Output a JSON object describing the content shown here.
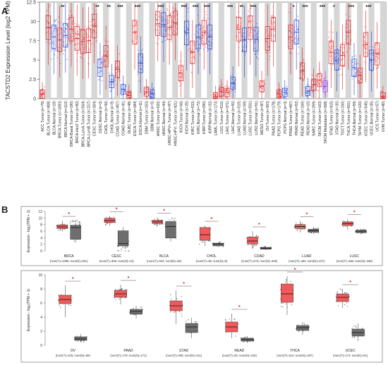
{
  "panel_a_label": "A",
  "panel_b_label": "B",
  "chart_data": [
    {
      "type": "box",
      "panel": "A",
      "ylabel": "TACSTD2 Expression Level (log2 TPM)",
      "ylim": [
        0,
        12.5
      ],
      "yticks": [
        0,
        2.5,
        5,
        7.5,
        10,
        12.5
      ],
      "colors": {
        "tumor": "#e41a1c",
        "normal": "#1f3fd6",
        "metastasis": "#9b30ff"
      },
      "categories": [
        {
          "label": "ACC.Tumor (n=79)",
          "group": "tumor",
          "median": 0.6
        },
        {
          "label": "BLCA.Tumor (n=408)",
          "group": "tumor",
          "median": 9.2
        },
        {
          "label": "BLCA.Normal (n=19)",
          "group": "normal",
          "median": 8.0
        },
        {
          "label": "BRCA.Tumor (n=1093)",
          "group": "tumor",
          "median": 7.6
        },
        {
          "label": "BRCA.Normal (n=112)",
          "group": "normal",
          "median": 8.2
        },
        {
          "label": "BRCA-Basal.Tumor (n=190)",
          "group": "tumor",
          "median": 9.0
        },
        {
          "label": "BRCA-Her2.Tumor (n=82)",
          "group": "tumor",
          "median": 7.8
        },
        {
          "label": "BRCA-LumA.Tumor (n=564)",
          "group": "tumor",
          "median": 7.4
        },
        {
          "label": "BRCA-LumB.Tumor (n=217)",
          "group": "tumor",
          "median": 7.5
        },
        {
          "label": "CESC.Tumor (n=304)",
          "group": "tumor",
          "median": 9.4
        },
        {
          "label": "CESC.Normal (n=3)",
          "group": "normal",
          "median": 4.0
        },
        {
          "label": "CHOL.Tumor (n=36)",
          "group": "tumor",
          "median": 5.5
        },
        {
          "label": "CHOL.Normal (n=9)",
          "group": "normal",
          "median": 2.2
        },
        {
          "label": "COAD.Tumor (n=457)",
          "group": "tumor",
          "median": 3.8
        },
        {
          "label": "COAD.Normal (n=41)",
          "group": "normal",
          "median": 1.2
        },
        {
          "label": "DLBC.Tumor (n=48)",
          "group": "tumor",
          "median": 0.4
        },
        {
          "label": "ESCA.Tumor (n=184)",
          "group": "tumor",
          "median": 8.6
        },
        {
          "label": "ESCA.Normal (n=11)",
          "group": "normal",
          "median": 4.6
        },
        {
          "label": "GBM.Tumor (n=153)",
          "group": "tumor",
          "median": 0.9
        },
        {
          "label": "GBM.Normal (n=5)",
          "group": "normal",
          "median": 0.6
        },
        {
          "label": "HNSC.Tumor (n=520)",
          "group": "tumor",
          "median": 9.7
        },
        {
          "label": "HNSC.Normal (n=44)",
          "group": "normal",
          "median": 9.6
        },
        {
          "label": "HNSC-HPV+.Tumor (n=97)",
          "group": "tumor",
          "median": 9.2
        },
        {
          "label": "HNSC-HPV-.Tumor (n=421)",
          "group": "tumor",
          "median": 9.8
        },
        {
          "label": "KICH.Tumor (n=66)",
          "group": "tumor",
          "median": 3.3
        },
        {
          "label": "KICH.Normal (n=25)",
          "group": "normal",
          "median": 8.5
        },
        {
          "label": "KIRC.Tumor (n=533)",
          "group": "tumor",
          "median": 6.0
        },
        {
          "label": "KIRC.Normal (n=72)",
          "group": "normal",
          "median": 8.0
        },
        {
          "label": "KIRP.Tumor (n=290)",
          "group": "tumor",
          "median": 8.6
        },
        {
          "label": "KIRP.Normal (n=32)",
          "group": "normal",
          "median": 8.0
        },
        {
          "label": "LAML.Tumor (n=173)",
          "group": "tumor",
          "median": 0.3
        },
        {
          "label": "LGG.Tumor (n=516)",
          "group": "tumor",
          "median": 0.9
        },
        {
          "label": "LIHC.Tumor (n=371)",
          "group": "tumor",
          "median": 0.8
        },
        {
          "label": "LIHC.Normal (n=50)",
          "group": "normal",
          "median": 2.0
        },
        {
          "label": "LUAD.Tumor (n=515)",
          "group": "tumor",
          "median": 9.0
        },
        {
          "label": "LUAD.Normal (n=59)",
          "group": "normal",
          "median": 7.6
        },
        {
          "label": "LUSC.Tumor (n=501)",
          "group": "tumor",
          "median": 9.2
        },
        {
          "label": "LUSC.Normal (n=51)",
          "group": "normal",
          "median": 7.7
        },
        {
          "label": "MESO.Tumor (n=87)",
          "group": "tumor",
          "median": 1.6
        },
        {
          "label": "OV.Tumor (n=303)",
          "group": "tumor",
          "median": 7.8
        },
        {
          "label": "PAAD.Tumor (n=178)",
          "group": "tumor",
          "median": 9.0
        },
        {
          "label": "PCPG.Tumor (n=179)",
          "group": "tumor",
          "median": 0.6
        },
        {
          "label": "PCPG.Normal (n=3)",
          "group": "normal",
          "median": 0.8
        },
        {
          "label": "PRAD.Tumor (n=497)",
          "group": "tumor",
          "median": 8.0
        },
        {
          "label": "PRAD.Normal (n=52)",
          "group": "normal",
          "median": 8.6
        },
        {
          "label": "READ.Tumor (n=166)",
          "group": "tumor",
          "median": 3.6
        },
        {
          "label": "READ.Normal (n=10)",
          "group": "normal",
          "median": 1.0
        },
        {
          "label": "SARC.Tumor (n=259)",
          "group": "tumor",
          "median": 1.8
        },
        {
          "label": "SKCM.Tumor (n=103)",
          "group": "tumor",
          "median": 2.4
        },
        {
          "label": "SKCM.Metastasis (n=368)",
          "group": "metastasis",
          "median": 1.6
        },
        {
          "label": "STAD.Tumor (n=415)",
          "group": "tumor",
          "median": 6.0
        },
        {
          "label": "STAD.Normal (n=35)",
          "group": "normal",
          "median": 5.0
        },
        {
          "label": "TGCT.Tumor (n=150)",
          "group": "tumor",
          "median": 5.6
        },
        {
          "label": "THCA.Tumor (n=501)",
          "group": "tumor",
          "median": 8.6
        },
        {
          "label": "THCA.Normal (n=59)",
          "group": "normal",
          "median": 4.0
        },
        {
          "label": "THYM.Tumor (n=120)",
          "group": "tumor",
          "median": 3.0
        },
        {
          "label": "UCEC.Tumor (n=545)",
          "group": "tumor",
          "median": 7.0
        },
        {
          "label": "UCEC.Normal (n=35)",
          "group": "normal",
          "median": 5.0
        },
        {
          "label": "UCS.Tumor (n=57)",
          "group": "tumor",
          "median": 5.8
        },
        {
          "label": "UVM.Tumor (n=80)",
          "group": "tumor",
          "median": 0.3
        }
      ],
      "significance": [
        {
          "between": [
            3,
            4
          ],
          "label": "**"
        },
        {
          "between": [
            9,
            10
          ],
          "label": "**"
        },
        {
          "between": [
            11,
            12
          ],
          "label": "**"
        },
        {
          "between": [
            13,
            14
          ],
          "label": "***"
        },
        {
          "between": [
            16,
            17
          ],
          "label": "***"
        },
        {
          "between": [
            20,
            21
          ],
          "label": "***"
        },
        {
          "between": [
            24,
            25
          ],
          "label": "***"
        },
        {
          "between": [
            26,
            27
          ],
          "label": "***"
        },
        {
          "between": [
            28,
            29
          ],
          "label": "***"
        },
        {
          "between": [
            32,
            33
          ],
          "label": "***"
        },
        {
          "between": [
            34,
            35
          ],
          "label": "**"
        },
        {
          "between": [
            36,
            37
          ],
          "label": "***"
        },
        {
          "between": [
            43,
            44
          ],
          "label": "*"
        },
        {
          "between": [
            45,
            46
          ],
          "label": "***"
        },
        {
          "between": [
            48,
            49
          ],
          "label": "***"
        },
        {
          "between": [
            50,
            51
          ],
          "label": "*"
        },
        {
          "between": [
            53,
            54
          ],
          "label": "***"
        },
        {
          "between": [
            56,
            57
          ],
          "label": "***"
        }
      ]
    },
    {
      "type": "box",
      "panel": "B-top",
      "ylabel": "Expression - log₂(TPM + 1)",
      "ylim": [
        0,
        12
      ],
      "yticks": [
        0,
        2,
        4,
        6,
        8,
        10,
        12
      ],
      "groups": [
        {
          "name": "BRCA",
          "n": "(num(T)=1085; num(N)=291)",
          "tumor": [
            5.9,
            6.8,
            7.3,
            7.9,
            9.2
          ],
          "normal": [
            2.5,
            3.5,
            7.1,
            7.8,
            8.6
          ]
        },
        {
          "name": "CESC",
          "n": "(num(T)=306; num(N)=13)",
          "tumor": [
            7.6,
            8.6,
            9.2,
            9.9,
            10.6
          ],
          "normal": [
            1.2,
            1.5,
            2.2,
            6.1,
            7.2
          ]
        },
        {
          "name": "BLCA",
          "n": "(num(T)=404; num(N)=28)",
          "tumor": [
            7.4,
            8.3,
            8.8,
            9.3,
            10.2
          ],
          "normal": [
            2.8,
            3.9,
            7.4,
            8.9,
            9.3
          ]
        },
        {
          "name": "CHOL",
          "n": "(num(T)=36; num(N)=9)",
          "tumor": [
            1.5,
            3.2,
            4.9,
            7.1,
            7.7
          ],
          "normal": [
            1.2,
            1.5,
            2.1,
            2.3,
            2.5
          ]
        },
        {
          "name": "COAD",
          "n": "(num(T)=275; num(N)=349)",
          "tumor": [
            0.6,
            2.1,
            3.0,
            4.2,
            6.0
          ],
          "normal": [
            0.3,
            0.5,
            0.8,
            1.0,
            1.3
          ]
        },
        {
          "name": "LUAD",
          "n": "(num(T)=483; num(N)=347)",
          "tumor": [
            5.6,
            6.8,
            7.4,
            8.0,
            9.1
          ],
          "normal": [
            5.0,
            5.7,
            6.1,
            6.6,
            7.3
          ]
        },
        {
          "name": "LUSC",
          "n": "(num(T)=486; num(N)=338)",
          "tumor": [
            6.4,
            7.7,
            8.3,
            8.8,
            9.7
          ],
          "normal": [
            5.1,
            5.5,
            6.0,
            6.3,
            6.8
          ]
        }
      ],
      "significant_mark": "*"
    },
    {
      "type": "box",
      "panel": "B-bottom",
      "ylabel": "Expression - log₂(TPM + 1)",
      "ylim": [
        0,
        10
      ],
      "yticks": [
        0,
        2,
        4,
        6,
        8,
        10
      ],
      "groups": [
        {
          "name": "OV",
          "n": "(num(T)=426; num(N)=88)",
          "tumor": [
            4.0,
            5.9,
            6.5,
            7.1,
            8.5
          ],
          "normal": [
            0.4,
            0.7,
            0.9,
            1.2,
            1.6
          ]
        },
        {
          "name": "PAAD",
          "n": "(num(T)=179; num(N)=171)",
          "tumor": [
            5.8,
            6.8,
            7.3,
            7.8,
            8.6
          ],
          "normal": [
            3.8,
            4.4,
            4.8,
            5.1,
            5.6
          ]
        },
        {
          "name": "STAD",
          "n": "(num(T)=408; num(N)=211)",
          "tumor": [
            3.0,
            4.9,
            5.6,
            6.3,
            7.8
          ],
          "normal": [
            1.0,
            1.8,
            2.6,
            3.1,
            3.9
          ]
        },
        {
          "name": "READ",
          "n": "(num(T)=92; num(N)=318)",
          "tumor": [
            1.0,
            1.9,
            2.6,
            3.3,
            4.5
          ],
          "normal": [
            0.3,
            0.6,
            0.8,
            1.0,
            1.3
          ]
        },
        {
          "name": "THCA",
          "n": "(num(T)=512; num(N)=337)",
          "tumor": [
            4.3,
            6.1,
            7.3,
            8.7,
            9.8
          ],
          "normal": [
            1.5,
            2.1,
            2.5,
            2.8,
            3.3
          ]
        },
        {
          "name": "UCEC",
          "n": "(num(T)=174; num(N)=91)",
          "tumor": [
            5.3,
            6.2,
            6.8,
            7.3,
            8.0
          ],
          "normal": [
            0.6,
            1.3,
            1.8,
            2.3,
            3.1
          ]
        }
      ],
      "significant_mark": "*"
    }
  ]
}
